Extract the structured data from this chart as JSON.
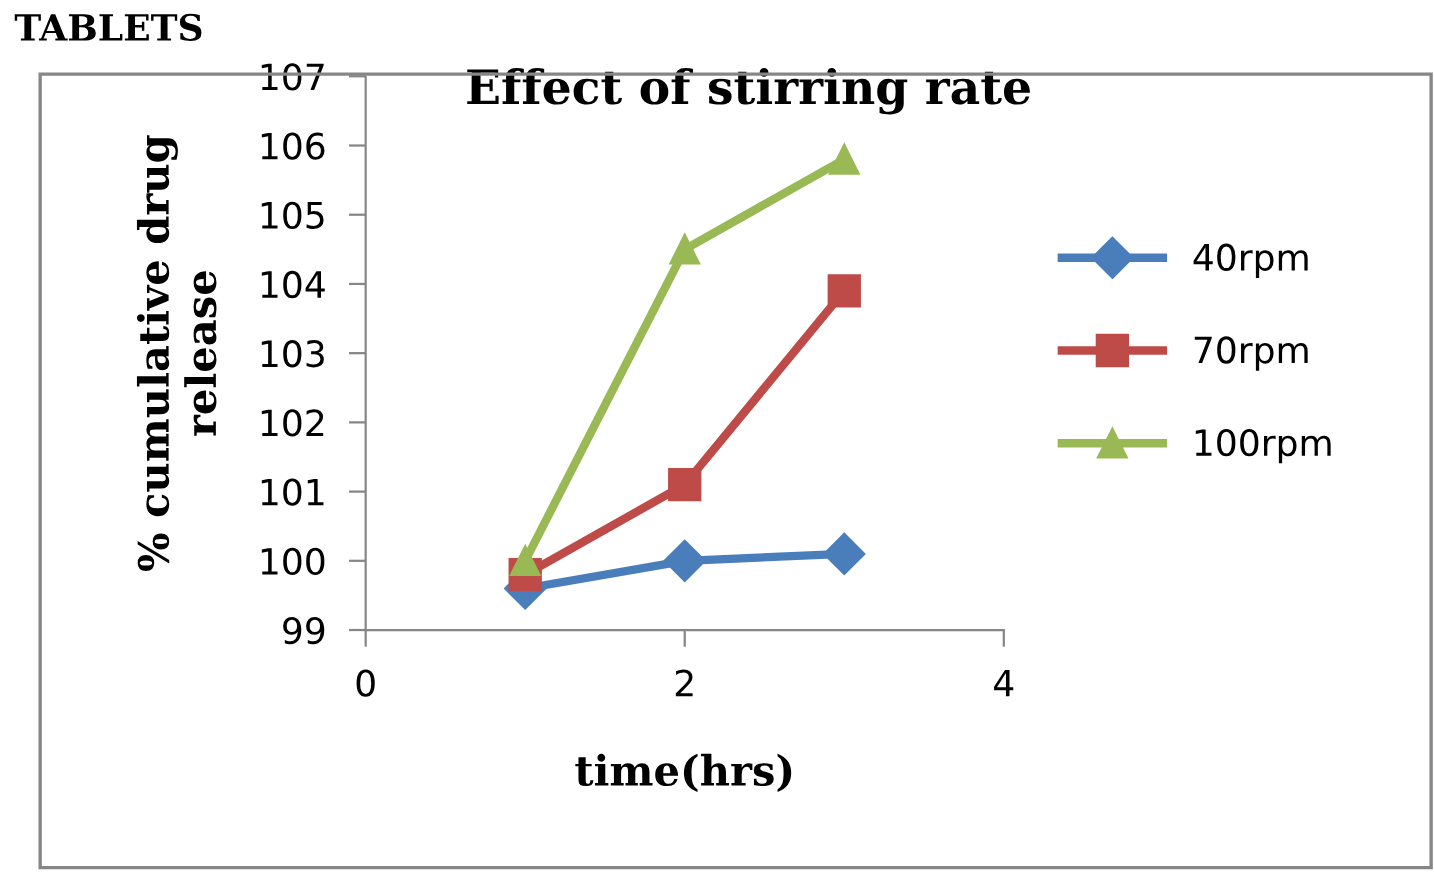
{
  "chart_data": {
    "type": "line",
    "title": "Effect of stirring rate",
    "xlabel": "time(hrs)",
    "ylabel": "% cumulative drug\nrelease",
    "annotations": [
      "TABLETS"
    ],
    "x": [
      1,
      2,
      3
    ],
    "series": [
      {
        "name": "40rpm",
        "color": "#4a7ebb",
        "marker": "diamond",
        "values": [
          99.6,
          100.0,
          100.1
        ]
      },
      {
        "name": "70rpm",
        "color": "#be4b48",
        "marker": "square",
        "values": [
          99.8,
          101.1,
          103.9
        ]
      },
      {
        "name": "100rpm",
        "color": "#98b954",
        "marker": "triangle",
        "values": [
          100.0,
          104.5,
          105.8
        ]
      }
    ],
    "xlim": [
      0,
      4
    ],
    "xticks": [
      0,
      2,
      4
    ],
    "ylim": [
      99,
      107
    ],
    "yticks": [
      99,
      100,
      101,
      102,
      103,
      104,
      105,
      106,
      107
    ],
    "grid": false,
    "legend": "right",
    "line_style": "solid"
  }
}
